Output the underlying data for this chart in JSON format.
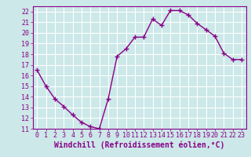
{
  "x": [
    0,
    1,
    2,
    3,
    4,
    5,
    6,
    7,
    8,
    9,
    10,
    11,
    12,
    13,
    14,
    15,
    16,
    17,
    18,
    19,
    20,
    21,
    22,
    23
  ],
  "y": [
    16.5,
    15.0,
    13.8,
    13.1,
    12.3,
    11.6,
    11.2,
    11.0,
    13.8,
    17.8,
    18.5,
    19.6,
    19.6,
    21.3,
    20.7,
    22.1,
    22.1,
    21.7,
    20.9,
    20.3,
    19.7,
    18.1,
    17.5,
    17.5
  ],
  "line_color": "#880088",
  "marker": "+",
  "marker_size": 4,
  "marker_color": "#880088",
  "bg_color": "#cce8e8",
  "grid_color": "#ffffff",
  "xlabel": "Windchill (Refroidissement éolien,°C)",
  "xlabel_color": "#880088",
  "xlabel_fontsize": 7,
  "xlim": [
    -0.5,
    23.5
  ],
  "ylim": [
    11,
    22.5
  ],
  "yticks": [
    11,
    12,
    13,
    14,
    15,
    16,
    17,
    18,
    19,
    20,
    21,
    22
  ],
  "xticks": [
    0,
    1,
    2,
    3,
    4,
    5,
    6,
    7,
    8,
    9,
    10,
    11,
    12,
    13,
    14,
    15,
    16,
    17,
    18,
    19,
    20,
    21,
    22,
    23
  ],
  "tick_fontsize": 6,
  "line_width": 1.0,
  "spine_color": "#880088"
}
